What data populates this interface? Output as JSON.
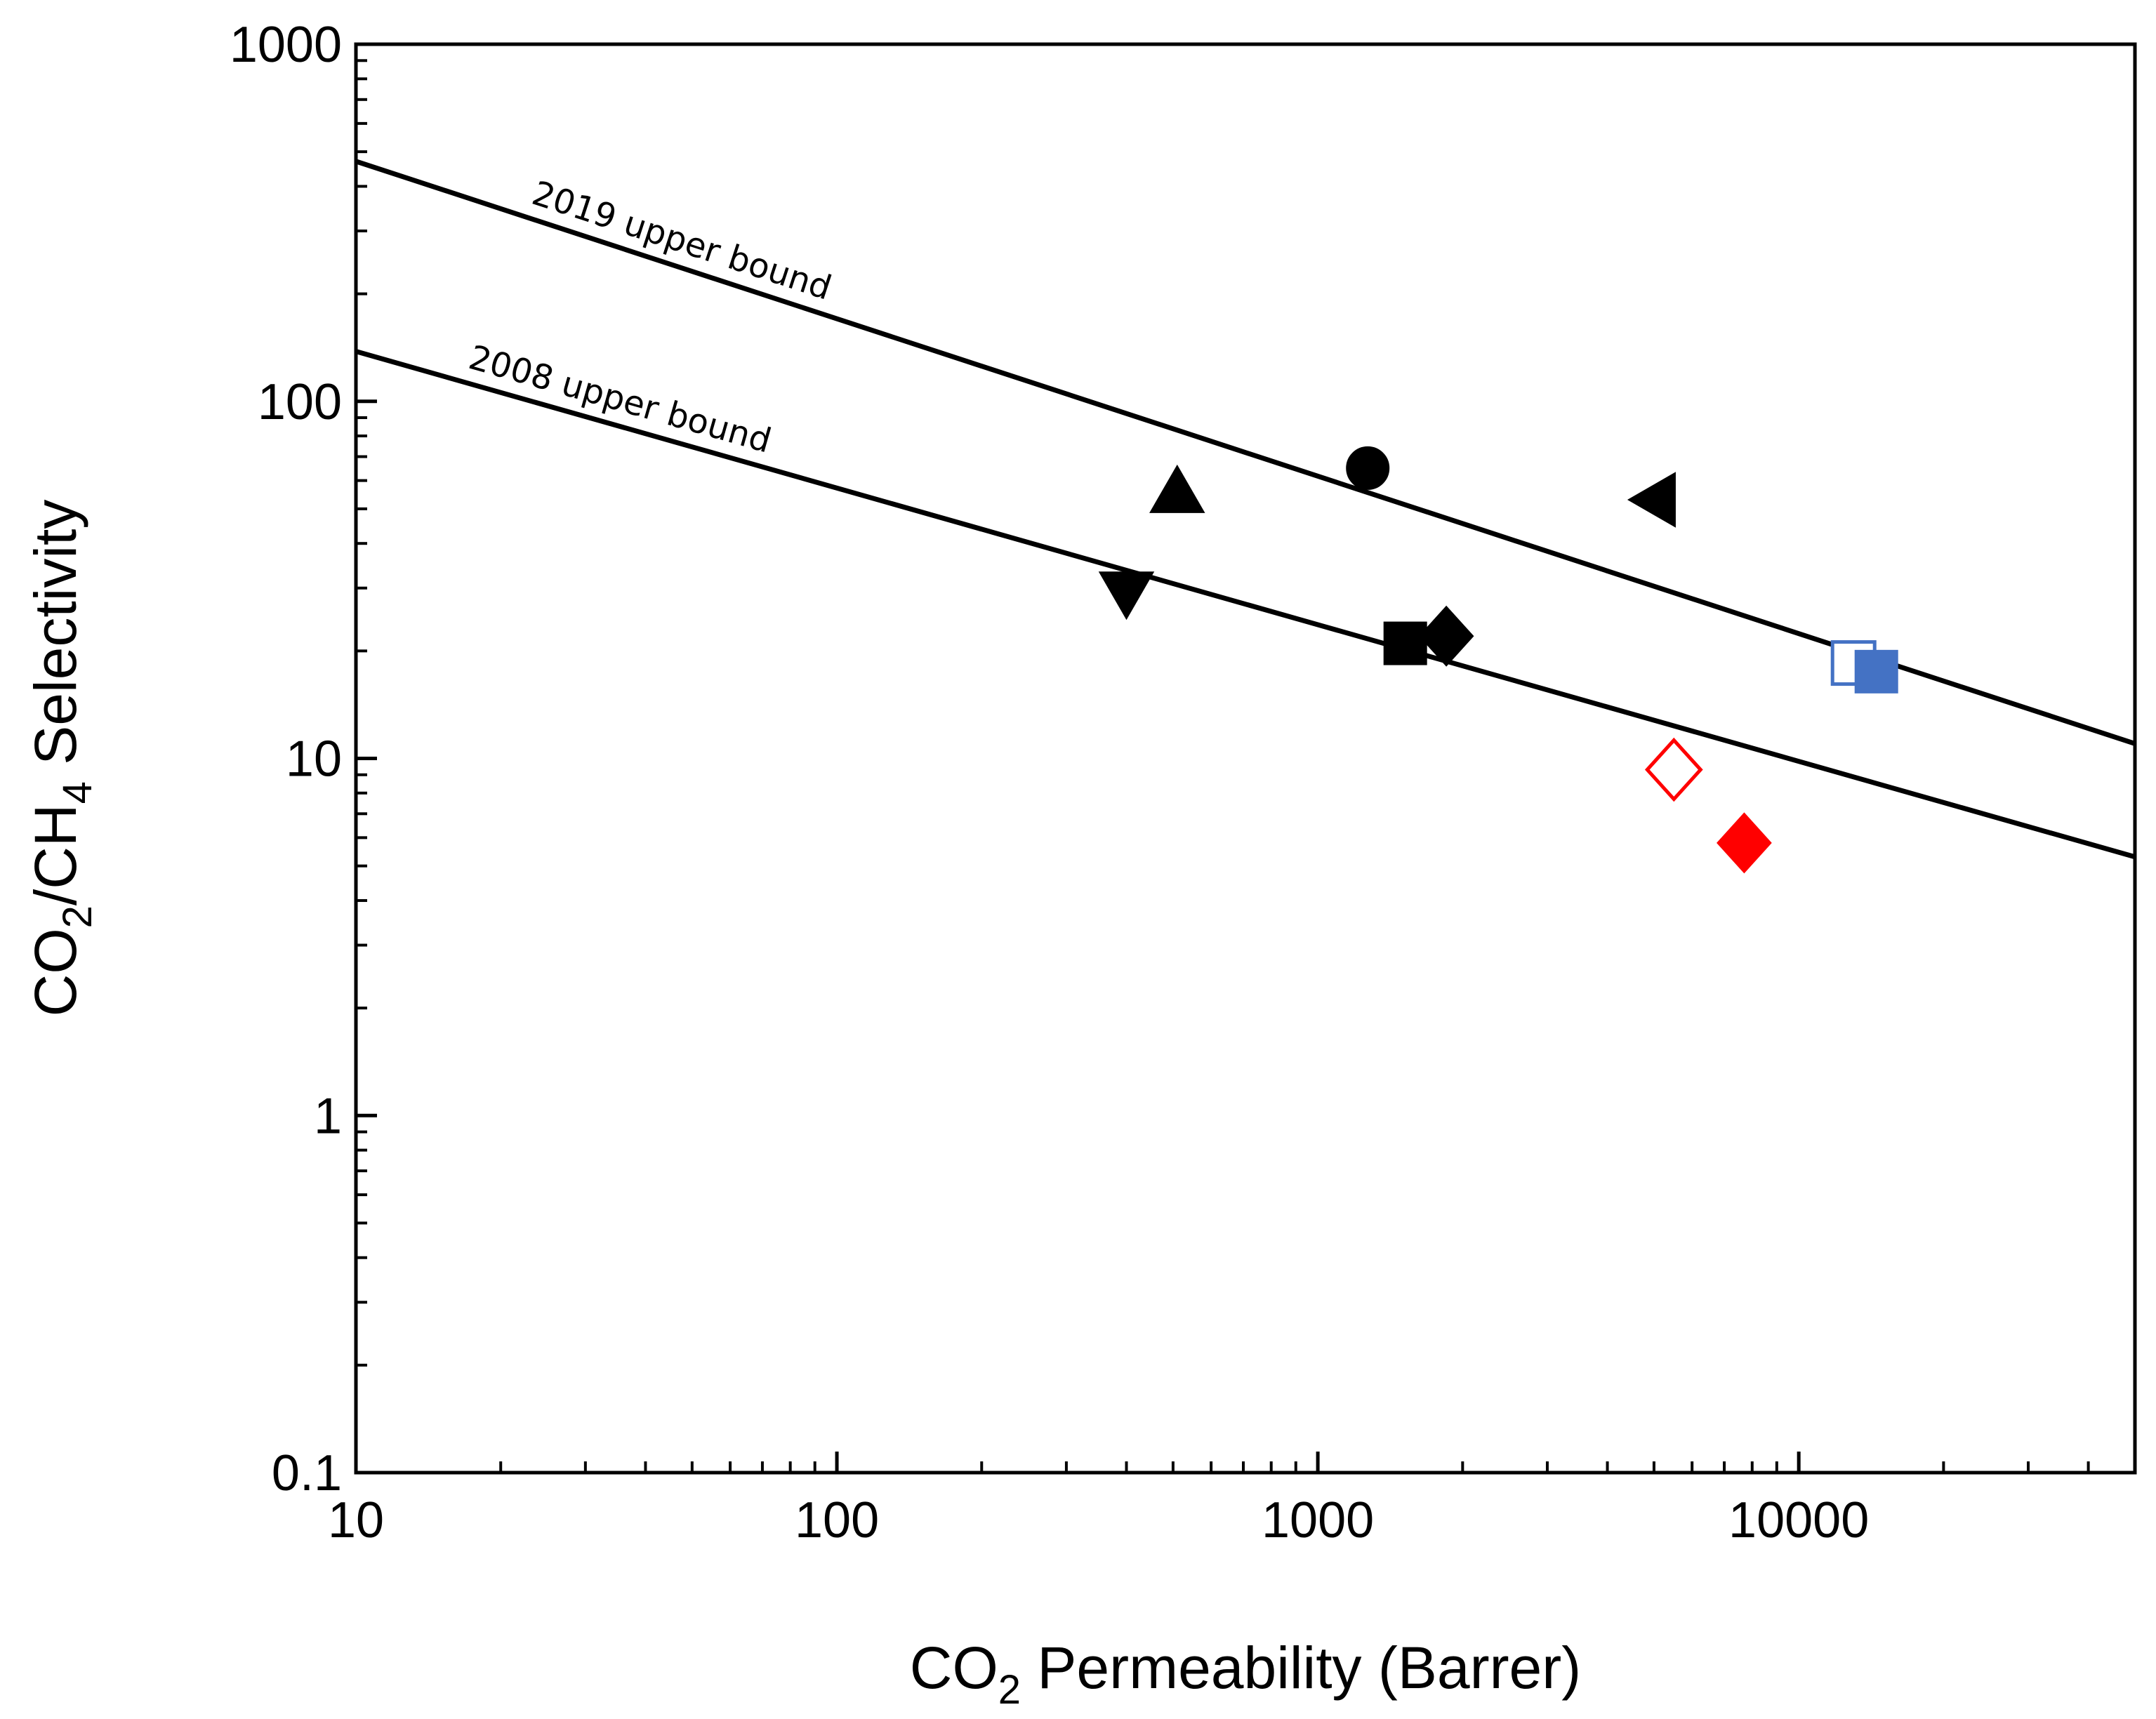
{
  "chart_data": {
    "type": "scatter",
    "title": "",
    "x_scale": "log",
    "y_scale": "log",
    "xlim": [
      10,
      50000
    ],
    "ylim": [
      0.1,
      1000
    ],
    "xlabel": {
      "main": "CO",
      "sub": "2",
      "rest": " Permeability (Barrer)"
    },
    "ylabel": {
      "p1": "CO",
      "s1": "2",
      "p2": "/CH",
      "s2": "4",
      "p3": " Selectivity"
    },
    "x_ticks": [
      {
        "value": 10,
        "label": "10"
      },
      {
        "value": 100,
        "label": "100"
      },
      {
        "value": 1000,
        "label": "1000"
      },
      {
        "value": 10000,
        "label": "10000"
      }
    ],
    "y_ticks": [
      {
        "value": 1000,
        "label": "1000"
      },
      {
        "value": 100,
        "label": "100"
      },
      {
        "value": 10,
        "label": "10"
      },
      {
        "value": 1,
        "label": "1"
      },
      {
        "value": 0.1,
        "label": "0.1"
      }
    ],
    "upper_bounds": [
      {
        "name": "2019 upper bound",
        "x": [
          10,
          50000
        ],
        "y": [
          470,
          11
        ]
      },
      {
        "name": "2008 upper bound",
        "x": [
          10,
          50000
        ],
        "y": [
          138,
          5.3
        ]
      }
    ],
    "points": [
      {
        "x": 1270,
        "y": 65,
        "marker": "circle",
        "color": "#000000",
        "filled": true
      },
      {
        "x": 510,
        "y": 56,
        "marker": "triangle-up",
        "color": "#000000",
        "filled": true
      },
      {
        "x": 5000,
        "y": 53,
        "marker": "triangle-left",
        "color": "#000000",
        "filled": true
      },
      {
        "x": 400,
        "y": 29,
        "marker": "triangle-down",
        "color": "#000000",
        "filled": true
      },
      {
        "x": 1520,
        "y": 21,
        "marker": "square",
        "color": "#000000",
        "filled": true
      },
      {
        "x": 1850,
        "y": 22,
        "marker": "diamond",
        "color": "#000000",
        "filled": true
      },
      {
        "x": 13000,
        "y": 18.5,
        "marker": "square",
        "color": "#4472C4",
        "filled": false
      },
      {
        "x": 14500,
        "y": 17.5,
        "marker": "square",
        "color": "#4472C4",
        "filled": true
      },
      {
        "x": 5500,
        "y": 9.3,
        "marker": "diamond",
        "color": "#FF0000",
        "filled": false
      },
      {
        "x": 7700,
        "y": 5.8,
        "marker": "diamond",
        "color": "#FF0000",
        "filled": true
      }
    ]
  }
}
